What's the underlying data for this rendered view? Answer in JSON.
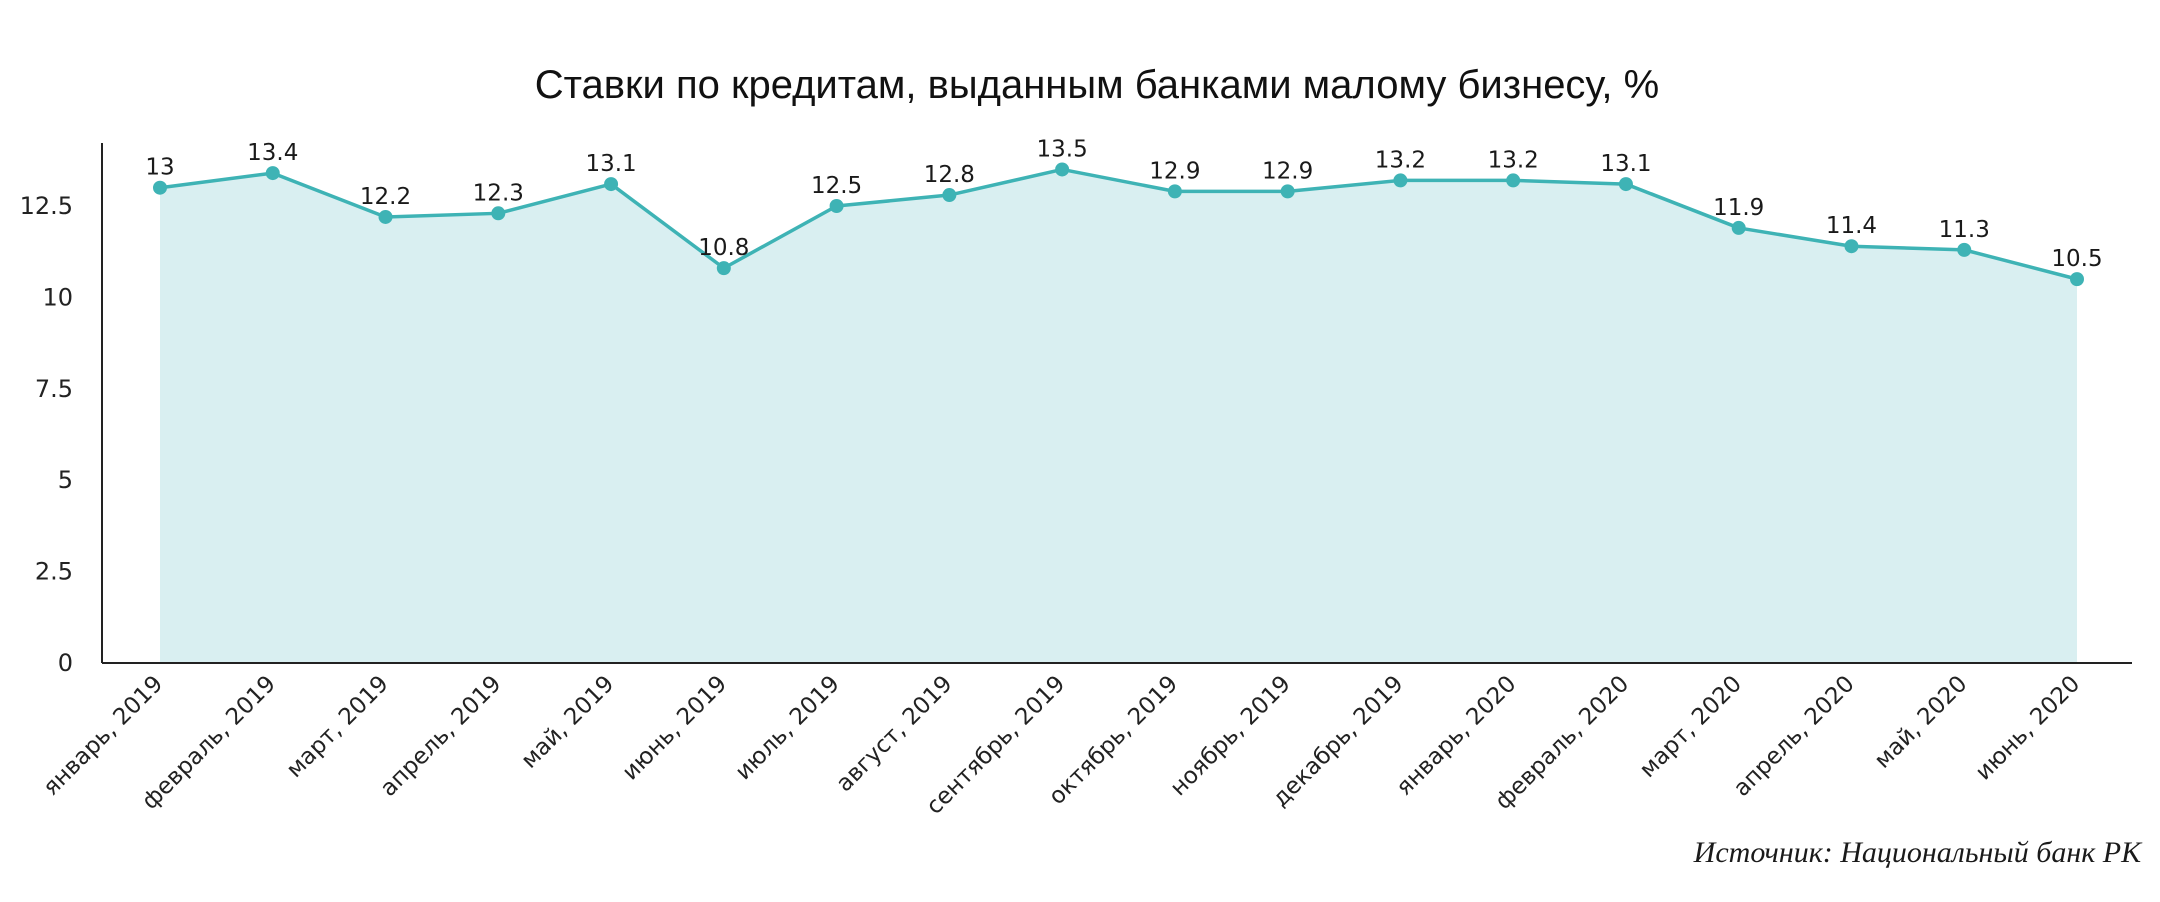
{
  "chart_data": {
    "type": "area",
    "title": "Ставки по кредитам, выданным банками малому бизнесу, %",
    "xlabel": "",
    "ylabel": "",
    "ylim": [
      0,
      14.2
    ],
    "yticks": [
      "0",
      "2.5",
      "5",
      "7.5",
      "10",
      "12.5"
    ],
    "categories": [
      "январь, 2019",
      "февраль, 2019",
      "март, 2019",
      "апрель, 2019",
      "май, 2019",
      "июнь, 2019",
      "июль, 2019",
      "август, 2019",
      "сентябрь, 2019",
      "октябрь, 2019",
      "ноябрь, 2019",
      "декабрь, 2019",
      "январь, 2020",
      "февраль, 2020",
      "март, 2020",
      "апрель, 2020",
      "май, 2020",
      "июнь, 2020"
    ],
    "series": [
      {
        "values": [
          13,
          13.4,
          12.2,
          12.3,
          13.1,
          10.8,
          12.5,
          12.8,
          13.5,
          12.9,
          12.9,
          13.2,
          13.2,
          13.1,
          11.9,
          11.4,
          11.3,
          10.5
        ],
        "labels": [
          "13",
          "13.4",
          "12.2",
          "12.3",
          "13.1",
          "10.8",
          "12.5",
          "12.8",
          "13.5",
          "12.9",
          "12.9",
          "13.2",
          "13.2",
          "13.1",
          "11.9",
          "11.4",
          "11.3",
          "10.5"
        ]
      }
    ],
    "grid": false,
    "legend": "none",
    "colors": {
      "line": "#3eb3b5",
      "fill": "#d9eff1",
      "axis": "#222222"
    }
  },
  "source": "Источник: Национальный банк РК"
}
